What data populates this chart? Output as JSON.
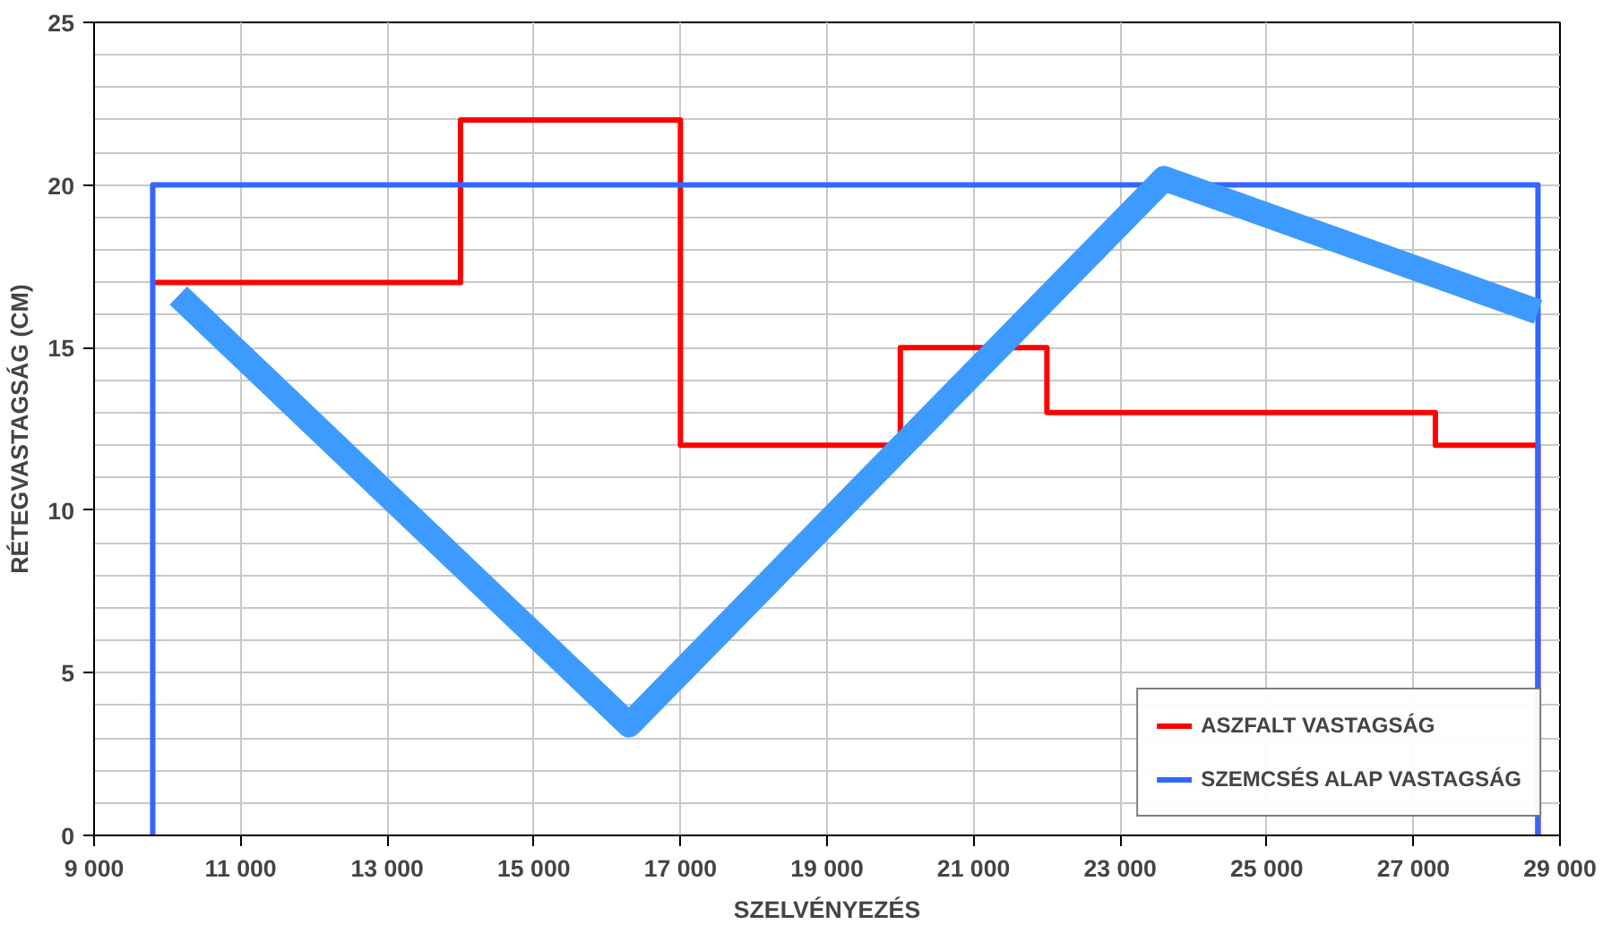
{
  "chart_data": {
    "type": "step",
    "xlabel": "SZELVÉNYEZÉS",
    "ylabel": "RÉTEGVASTAGSÁG (CM)",
    "xlim": [
      9000,
      29000
    ],
    "xticks": [
      {
        "value": 9000,
        "label": "9 000"
      },
      {
        "value": 11000,
        "label": "11 000"
      },
      {
        "value": 13000,
        "label": "13 000"
      },
      {
        "value": 15000,
        "label": "15 000"
      },
      {
        "value": 17000,
        "label": "17 000"
      },
      {
        "value": 19000,
        "label": "19 000"
      },
      {
        "value": 21000,
        "label": "21 000"
      },
      {
        "value": 23000,
        "label": "23 000"
      },
      {
        "value": 25000,
        "label": "25 000"
      },
      {
        "value": 27000,
        "label": "27 000"
      },
      {
        "value": 29000,
        "label": "29 000"
      }
    ],
    "ylim": [
      0,
      25
    ],
    "yticks": [
      0,
      5,
      10,
      15,
      20,
      25
    ],
    "grid": true,
    "legend": "bottom right",
    "series": [
      {
        "name": "ASZFALT VASTAGSÁG",
        "color": "#ff0000",
        "x": [
          9800,
          14000,
          17000,
          20000,
          22000,
          27300,
          28700
        ],
        "values": [
          17,
          22,
          12,
          15,
          13,
          12,
          0
        ]
      },
      {
        "name": "SZEMCSÉS ALAP VASTAGSÁG",
        "type": "line",
        "color": "#3366ff",
        "x": [
          9800,
          9800,
          28700,
          28700
        ],
        "values": [
          0,
          20,
          20,
          0
        ]
      },
      {
        "type": "line",
        "color": "#3d9bff",
        "x": [
          10150,
          16300,
          23600,
          28700
        ],
        "values": [
          16.6,
          3.4,
          20.2,
          16.1
        ]
      }
    ]
  }
}
